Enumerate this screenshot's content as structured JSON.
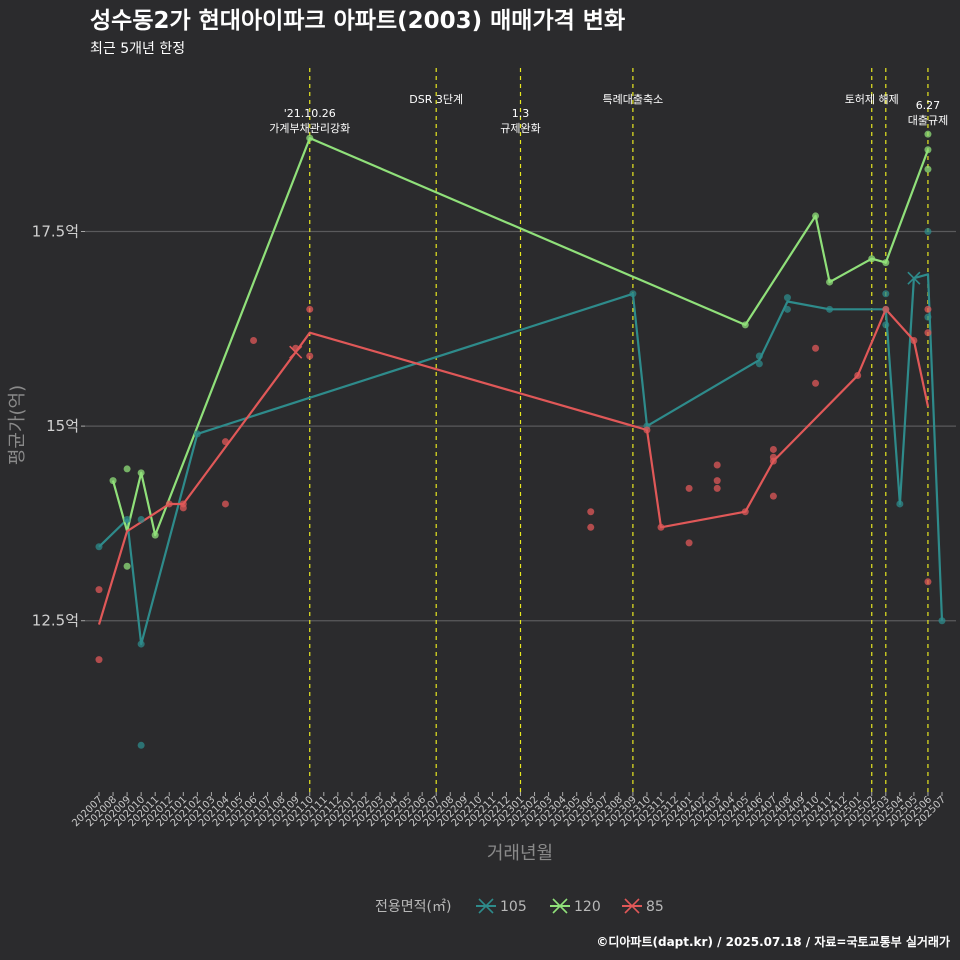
{
  "chart_data": {
    "type": "line",
    "title": "성수동2가 현대아이파크 아파트(2003) 매매가격 변화",
    "subtitle": "최근 5개년 한정",
    "xlabel": "거래년월",
    "ylabel": "평균가(억)",
    "caption": "©디아파트(dapt.kr) / 2025.07.18 / 자료=국토교통부 실거래가",
    "legend_title": "전용면적(㎡)",
    "ylim": [
      10.3,
      19.6
    ],
    "y_ticks": [
      12.5,
      15,
      17.5
    ],
    "y_tick_labels": [
      "12.5억",
      "15억",
      "17.5억"
    ],
    "x_categories": [
      "202007",
      "202008",
      "202009",
      "202010",
      "202011",
      "202012",
      "202101",
      "202102",
      "202103",
      "202104",
      "202105",
      "202106",
      "202107",
      "202108",
      "202109",
      "202110",
      "202111",
      "202112",
      "202201",
      "202202",
      "202203",
      "202204",
      "202205",
      "202206",
      "202207",
      "202208",
      "202209",
      "202210",
      "202211",
      "202212",
      "202301",
      "202302",
      "202303",
      "202304",
      "202305",
      "202306",
      "202307",
      "202308",
      "202309",
      "202310",
      "202311",
      "202312",
      "202401",
      "202402",
      "202403",
      "202404",
      "202405",
      "202406",
      "202407",
      "202408",
      "202409",
      "202410",
      "202411",
      "202412",
      "202501",
      "202502",
      "202503",
      "202504",
      "202505",
      "202506",
      "202507"
    ],
    "annotations": [
      {
        "x": "202110",
        "lines": [
          "'21.10.26",
          "가계부채관리강화"
        ],
        "level": 1
      },
      {
        "x": "202207",
        "lines": [
          "DSR 3단계"
        ],
        "level": 2
      },
      {
        "x": "202301",
        "lines": [
          "1.3",
          "규제완화"
        ],
        "level": 1
      },
      {
        "x": "202309",
        "lines": [
          "특례대출축소"
        ],
        "level": 2
      },
      {
        "x": "202502",
        "lines": [
          "토허제 해제"
        ],
        "level": 0
      },
      {
        "x": "202503",
        "lines": [],
        "level": 0
      },
      {
        "x": "202506",
        "lines": [
          "6.27",
          "대출규제"
        ],
        "level": 3
      }
    ],
    "series": [
      {
        "name": "105",
        "color": "#2e8b8b",
        "line": [
          [
            "202007",
            13.45
          ],
          [
            "202009",
            13.8
          ],
          [
            "202010",
            12.2
          ],
          [
            "202102",
            14.9
          ],
          [
            "202309",
            16.7
          ],
          [
            "202310",
            15.0
          ],
          [
            "202406",
            15.85
          ],
          [
            "202408",
            16.6
          ],
          [
            "202411",
            16.5
          ],
          [
            "202503",
            16.5
          ],
          [
            "202504",
            14.0
          ],
          [
            "202505",
            16.9
          ],
          [
            "202506",
            16.95
          ],
          [
            "202507",
            12.5
          ]
        ],
        "points": [
          [
            "202007",
            13.45
          ],
          [
            "202009",
            13.8
          ],
          [
            "202010",
            12.2
          ],
          [
            "202010",
            13.8
          ],
          [
            "202010",
            10.9
          ],
          [
            "202102",
            14.9
          ],
          [
            "202309",
            16.7
          ],
          [
            "202310",
            15.0
          ],
          [
            "202406",
            15.8
          ],
          [
            "202406",
            15.9
          ],
          [
            "202408",
            16.5
          ],
          [
            "202408",
            16.65
          ],
          [
            "202411",
            16.5
          ],
          [
            "202503",
            16.5
          ],
          [
            "202503",
            16.3
          ],
          [
            "202503",
            16.7
          ],
          [
            "202504",
            14.0
          ],
          [
            "202506",
            17.5
          ],
          [
            "202506",
            16.4
          ],
          [
            "202507",
            12.5
          ]
        ],
        "crosses": [
          [
            "202505",
            16.9
          ]
        ]
      },
      {
        "name": "120",
        "color": "#90e07a",
        "line": [
          [
            "202008",
            14.3
          ],
          [
            "202009",
            13.65
          ],
          [
            "202010",
            14.4
          ],
          [
            "202011",
            13.6
          ],
          [
            "202110",
            18.7
          ],
          [
            "202405",
            16.3
          ],
          [
            "202410",
            17.7
          ],
          [
            "202411",
            16.85
          ],
          [
            "202502",
            17.15
          ],
          [
            "202503",
            17.1
          ],
          [
            "202506",
            18.55
          ]
        ],
        "points": [
          [
            "202008",
            14.3
          ],
          [
            "202009",
            14.45
          ],
          [
            "202009",
            13.2
          ],
          [
            "202010",
            14.4
          ],
          [
            "202011",
            13.6
          ],
          [
            "202110",
            18.7
          ],
          [
            "202405",
            16.3
          ],
          [
            "202410",
            17.7
          ],
          [
            "202411",
            16.85
          ],
          [
            "202502",
            17.15
          ],
          [
            "202503",
            17.1
          ],
          [
            "202506",
            18.55
          ],
          [
            "202506",
            18.3
          ],
          [
            "202506",
            18.75
          ]
        ],
        "crosses": []
      },
      {
        "name": "85",
        "color": "#e05858",
        "line": [
          [
            "202007",
            12.45
          ],
          [
            "202009",
            13.65
          ],
          [
            "202012",
            14.0
          ],
          [
            "202101",
            14.0
          ],
          [
            "202109",
            15.95
          ],
          [
            "202110",
            16.2
          ],
          [
            "202310",
            14.95
          ],
          [
            "202311",
            13.7
          ],
          [
            "202405",
            13.9
          ],
          [
            "202407",
            14.55
          ],
          [
            "202501",
            15.65
          ],
          [
            "202503",
            16.5
          ],
          [
            "202505",
            16.1
          ],
          [
            "202506",
            15.25
          ]
        ],
        "points": [
          [
            "202007",
            12.9
          ],
          [
            "202007",
            12.0
          ],
          [
            "202012",
            14.0
          ],
          [
            "202101",
            13.95
          ],
          [
            "202101",
            14.0
          ],
          [
            "202104",
            14.8
          ],
          [
            "202104",
            14.0
          ],
          [
            "202106",
            16.1
          ],
          [
            "202109",
            16.0
          ],
          [
            "202110",
            16.5
          ],
          [
            "202110",
            15.9
          ],
          [
            "202306",
            13.9
          ],
          [
            "202306",
            13.7
          ],
          [
            "202310",
            14.95
          ],
          [
            "202311",
            13.7
          ],
          [
            "202401",
            14.2
          ],
          [
            "202401",
            13.5
          ],
          [
            "202403",
            14.5
          ],
          [
            "202403",
            14.3
          ],
          [
            "202403",
            14.2
          ],
          [
            "202405",
            13.9
          ],
          [
            "202407",
            14.7
          ],
          [
            "202407",
            14.6
          ],
          [
            "202407",
            14.55
          ],
          [
            "202407",
            14.1
          ],
          [
            "202410",
            16.0
          ],
          [
            "202410",
            15.55
          ],
          [
            "202501",
            15.65
          ],
          [
            "202503",
            16.5
          ],
          [
            "202505",
            16.1
          ],
          [
            "202506",
            16.5
          ],
          [
            "202506",
            16.2
          ],
          [
            "202506",
            13.0
          ]
        ],
        "crosses": [
          [
            "202109",
            15.95
          ]
        ]
      }
    ]
  }
}
